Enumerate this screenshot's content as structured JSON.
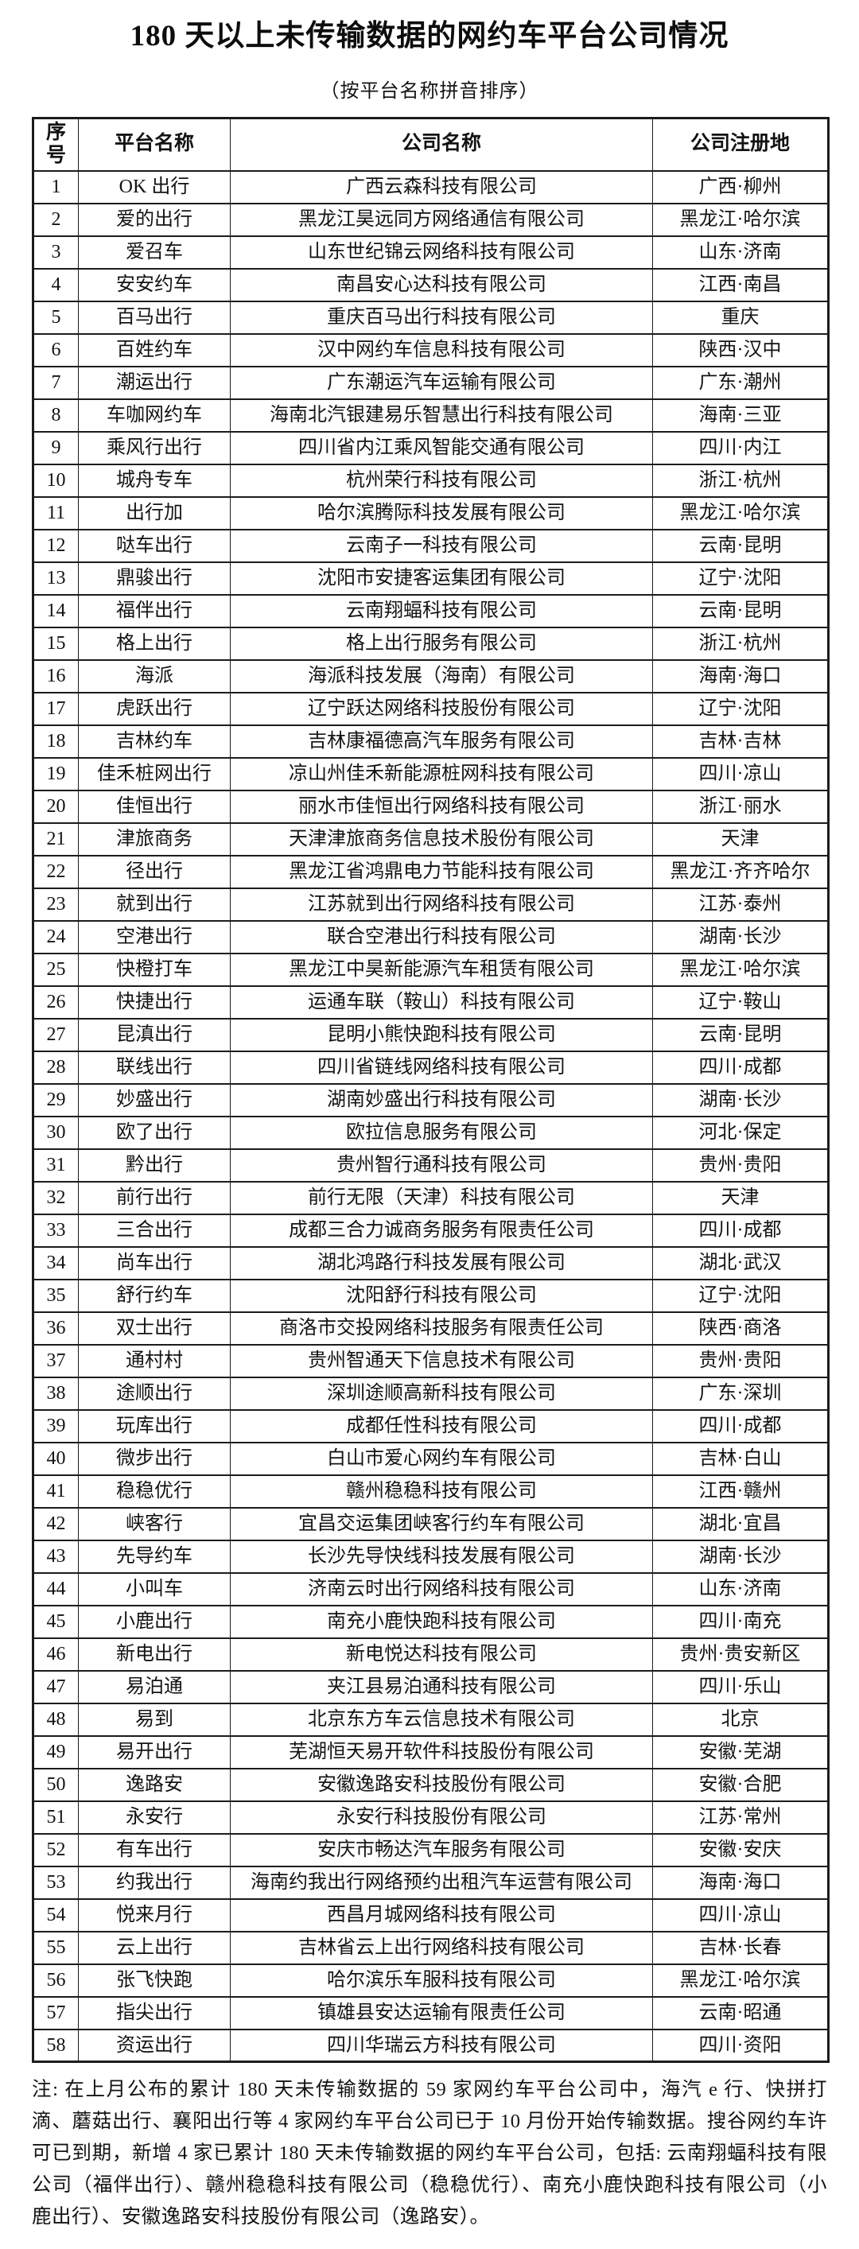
{
  "title": "180 天以上未传输数据的网约车平台公司情况",
  "subtitle": "（按平台名称拼音排序）",
  "table": {
    "headers": [
      "序号",
      "平台名称",
      "公司名称",
      "公司注册地"
    ],
    "rows": [
      [
        "1",
        "OK 出行",
        "广西云森科技有限公司",
        "广西·柳州"
      ],
      [
        "2",
        "爱的出行",
        "黑龙江昊远同方网络通信有限公司",
        "黑龙江·哈尔滨"
      ],
      [
        "3",
        "爱召车",
        "山东世纪锦云网络科技有限公司",
        "山东·济南"
      ],
      [
        "4",
        "安安约车",
        "南昌安心达科技有限公司",
        "江西·南昌"
      ],
      [
        "5",
        "百马出行",
        "重庆百马出行科技有限公司",
        "重庆"
      ],
      [
        "6",
        "百姓约车",
        "汉中网约车信息科技有限公司",
        "陕西·汉中"
      ],
      [
        "7",
        "潮运出行",
        "广东潮运汽车运输有限公司",
        "广东·潮州"
      ],
      [
        "8",
        "车咖网约车",
        "海南北汽银建易乐智慧出行科技有限公司",
        "海南·三亚"
      ],
      [
        "9",
        "乘风行出行",
        "四川省内江乘风智能交通有限公司",
        "四川·内江"
      ],
      [
        "10",
        "城舟专车",
        "杭州荣行科技有限公司",
        "浙江·杭州"
      ],
      [
        "11",
        "出行加",
        "哈尔滨腾际科技发展有限公司",
        "黑龙江·哈尔滨"
      ],
      [
        "12",
        "哒车出行",
        "云南子一科技有限公司",
        "云南·昆明"
      ],
      [
        "13",
        "鼎骏出行",
        "沈阳市安捷客运集团有限公司",
        "辽宁·沈阳"
      ],
      [
        "14",
        "福伴出行",
        "云南翔蝠科技有限公司",
        "云南·昆明"
      ],
      [
        "15",
        "格上出行",
        "格上出行服务有限公司",
        "浙江·杭州"
      ],
      [
        "16",
        "海派",
        "海派科技发展（海南）有限公司",
        "海南·海口"
      ],
      [
        "17",
        "虎跃出行",
        "辽宁跃达网络科技股份有限公司",
        "辽宁·沈阳"
      ],
      [
        "18",
        "吉林约车",
        "吉林康福德高汽车服务有限公司",
        "吉林·吉林"
      ],
      [
        "19",
        "佳禾桩网出行",
        "凉山州佳禾新能源桩网科技有限公司",
        "四川·凉山"
      ],
      [
        "20",
        "佳恒出行",
        "丽水市佳恒出行网络科技有限公司",
        "浙江·丽水"
      ],
      [
        "21",
        "津旅商务",
        "天津津旅商务信息技术股份有限公司",
        "天津"
      ],
      [
        "22",
        "径出行",
        "黑龙江省鸿鼎电力节能科技有限公司",
        "黑龙江·齐齐哈尔"
      ],
      [
        "23",
        "就到出行",
        "江苏就到出行网络科技有限公司",
        "江苏·泰州"
      ],
      [
        "24",
        "空港出行",
        "联合空港出行科技有限公司",
        "湖南·长沙"
      ],
      [
        "25",
        "快橙打车",
        "黑龙江中昊新能源汽车租赁有限公司",
        "黑龙江·哈尔滨"
      ],
      [
        "26",
        "快捷出行",
        "运通车联（鞍山）科技有限公司",
        "辽宁·鞍山"
      ],
      [
        "27",
        "昆滇出行",
        "昆明小熊快跑科技有限公司",
        "云南·昆明"
      ],
      [
        "28",
        "联线出行",
        "四川省链线网络科技有限公司",
        "四川·成都"
      ],
      [
        "29",
        "妙盛出行",
        "湖南妙盛出行科技有限公司",
        "湖南·长沙"
      ],
      [
        "30",
        "欧了出行",
        "欧拉信息服务有限公司",
        "河北·保定"
      ],
      [
        "31",
        "黔出行",
        "贵州智行通科技有限公司",
        "贵州·贵阳"
      ],
      [
        "32",
        "前行出行",
        "前行无限（天津）科技有限公司",
        "天津"
      ],
      [
        "33",
        "三合出行",
        "成都三合力诚商务服务有限责任公司",
        "四川·成都"
      ],
      [
        "34",
        "尚车出行",
        "湖北鸿路行科技发展有限公司",
        "湖北·武汉"
      ],
      [
        "35",
        "舒行约车",
        "沈阳舒行科技有限公司",
        "辽宁·沈阳"
      ],
      [
        "36",
        "双士出行",
        "商洛市交投网络科技服务有限责任公司",
        "陕西·商洛"
      ],
      [
        "37",
        "通村村",
        "贵州智通天下信息技术有限公司",
        "贵州·贵阳"
      ],
      [
        "38",
        "途顺出行",
        "深圳途顺高新科技有限公司",
        "广东·深圳"
      ],
      [
        "39",
        "玩库出行",
        "成都任性科技有限公司",
        "四川·成都"
      ],
      [
        "40",
        "微步出行",
        "白山市爱心网约车有限公司",
        "吉林·白山"
      ],
      [
        "41",
        "稳稳优行",
        "赣州稳稳科技有限公司",
        "江西·赣州"
      ],
      [
        "42",
        "峡客行",
        "宜昌交运集团峡客行约车有限公司",
        "湖北·宜昌"
      ],
      [
        "43",
        "先导约车",
        "长沙先导快线科技发展有限公司",
        "湖南·长沙"
      ],
      [
        "44",
        "小叫车",
        "济南云时出行网络科技有限公司",
        "山东·济南"
      ],
      [
        "45",
        "小鹿出行",
        "南充小鹿快跑科技有限公司",
        "四川·南充"
      ],
      [
        "46",
        "新电出行",
        "新电悦达科技有限公司",
        "贵州·贵安新区"
      ],
      [
        "47",
        "易泊通",
        "夹江县易泊通科技有限公司",
        "四川·乐山"
      ],
      [
        "48",
        "易到",
        "北京东方车云信息技术有限公司",
        "北京"
      ],
      [
        "49",
        "易开出行",
        "芜湖恒天易开软件科技股份有限公司",
        "安徽·芜湖"
      ],
      [
        "50",
        "逸路安",
        "安徽逸路安科技股份有限公司",
        "安徽·合肥"
      ],
      [
        "51",
        "永安行",
        "永安行科技股份有限公司",
        "江苏·常州"
      ],
      [
        "52",
        "有车出行",
        "安庆市畅达汽车服务有限公司",
        "安徽·安庆"
      ],
      [
        "53",
        "约我出行",
        "海南约我出行网络预约出租汽车运营有限公司",
        "海南·海口"
      ],
      [
        "54",
        "悦来月行",
        "西昌月城网络科技有限公司",
        "四川·凉山"
      ],
      [
        "55",
        "云上出行",
        "吉林省云上出行网络科技有限公司",
        "吉林·长春"
      ],
      [
        "56",
        "张飞快跑",
        "哈尔滨乐车服科技有限公司",
        "黑龙江·哈尔滨"
      ],
      [
        "57",
        "指尖出行",
        "镇雄县安达运输有限责任公司",
        "云南·昭通"
      ],
      [
        "58",
        "资运出行",
        "四川华瑞云方科技有限公司",
        "四川·资阳"
      ]
    ]
  },
  "note": "注: 在上月公布的累计 180 天未传输数据的 59 家网约车平台公司中，海汽 e 行、快拼打滴、蘑菇出行、襄阳出行等 4 家网约车平台公司已于 10 月份开始传输数据。搜谷网约车许可已到期，新增 4 家已累计 180 天未传输数据的网约车平台公司，包括: 云南翔蝠科技有限公司（福伴出行）、赣州稳稳科技有限公司（稳稳优行）、南充小鹿快跑科技有限公司（小鹿出行）、安徽逸路安科技股份有限公司（逸路安）。"
}
